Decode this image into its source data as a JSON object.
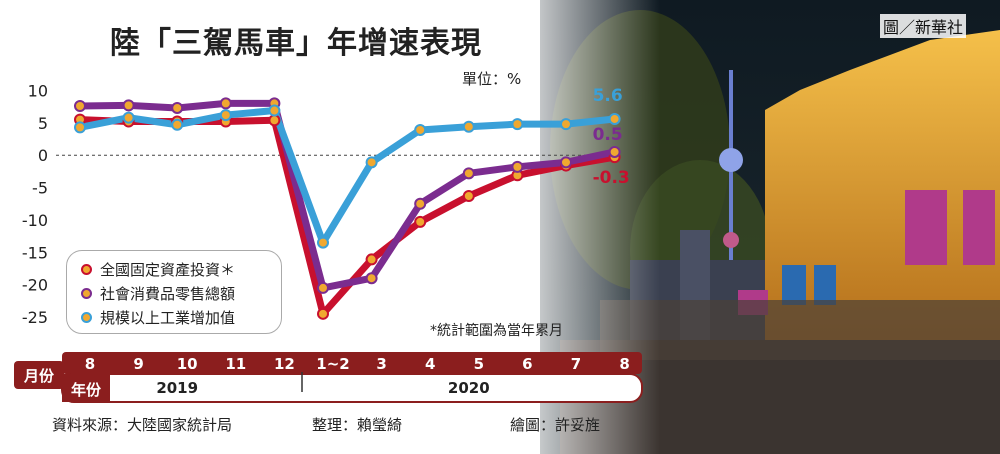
{
  "title": "陸「三駕馬車」年增速表現",
  "unit": "單位：%",
  "credit": "圖／新華社",
  "note": "*統計範圍為當年累月",
  "axis": {
    "month_label": "月份",
    "year_label": "年份",
    "years": [
      {
        "label": "2019",
        "category_index": 2
      },
      {
        "label": "2020",
        "category_index": 8
      }
    ]
  },
  "colors": {
    "fixed_asset": "#c8102e",
    "retail": "#7b2c8f",
    "industrial": "#3aa0d8",
    "band": "#8b1e1e"
  },
  "chart_data": {
    "type": "line",
    "categories": [
      "8",
      "9",
      "10",
      "11",
      "12",
      "1~2",
      "3",
      "4",
      "5",
      "6",
      "7",
      "8"
    ],
    "y_ticks": [
      10,
      5,
      0,
      -5,
      -10,
      -15,
      -20,
      -25
    ],
    "ylim": [
      -27,
      11
    ],
    "series": [
      {
        "name": "全國固定資產投資＊",
        "color": "#c8102e",
        "values": [
          5.5,
          5.2,
          5.2,
          5.2,
          5.4,
          -24.5,
          -16.1,
          -10.3,
          -6.3,
          -3.1,
          -1.6,
          -0.3
        ]
      },
      {
        "name": "社會消費品零售總額",
        "color": "#7b2c8f",
        "values": [
          7.6,
          7.7,
          7.3,
          8.0,
          8.0,
          -20.5,
          -19.0,
          -7.5,
          -2.8,
          -1.8,
          -1.1,
          0.5
        ]
      },
      {
        "name": "規模以上工業增加值",
        "color": "#3aa0d8",
        "values": [
          4.3,
          5.8,
          4.7,
          6.2,
          6.9,
          -13.5,
          -1.1,
          3.9,
          4.4,
          4.8,
          4.8,
          5.6
        ]
      }
    ],
    "end_labels": [
      "-0.3",
      "0.5",
      "5.6"
    ]
  },
  "footer": {
    "source": "資料來源：大陸國家統計局",
    "editor": "整理：賴瑩綺",
    "graphic": "繪圖：許妥旌"
  }
}
